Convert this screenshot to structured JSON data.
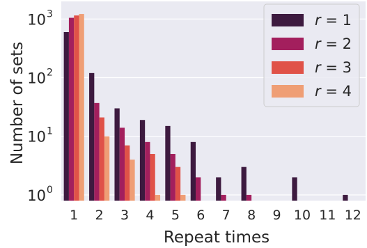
{
  "chart_data": {
    "type": "bar",
    "scale_y": "log",
    "xlabel": "Repeat times",
    "ylabel": "Number of sets",
    "categories": [
      "1",
      "2",
      "3",
      "4",
      "5",
      "6",
      "7",
      "8",
      "9",
      "10",
      "11",
      "12"
    ],
    "ylim": [
      0.8,
      2000
    ],
    "y_ticks": [
      {
        "value": 1,
        "base": "10",
        "exp": "0"
      },
      {
        "value": 10,
        "base": "10",
        "exp": "1"
      },
      {
        "value": 100,
        "base": "10",
        "exp": "2"
      },
      {
        "value": 1000,
        "base": "10",
        "exp": "3"
      }
    ],
    "grid": true,
    "legend_position": "top-right",
    "series": [
      {
        "name": "r = 1",
        "symbol": "r",
        "value": "1",
        "color": "#3d1a3f",
        "values": [
          600,
          120,
          30,
          19,
          15,
          8,
          2,
          3,
          null,
          2,
          null,
          1
        ]
      },
      {
        "name": "r = 2",
        "symbol": "r",
        "value": "2",
        "color": "#a31f5d",
        "values": [
          1050,
          37,
          14,
          8,
          5,
          2,
          1,
          1,
          null,
          null,
          null,
          null
        ]
      },
      {
        "name": "r = 3",
        "symbol": "r",
        "value": "3",
        "color": "#e05248",
        "values": [
          1150,
          21,
          7,
          5,
          3,
          null,
          null,
          null,
          null,
          null,
          null,
          null
        ]
      },
      {
        "name": "r = 4",
        "symbol": "r",
        "value": "4",
        "color": "#ef9e75",
        "values": [
          1220,
          10,
          4,
          1,
          1,
          null,
          null,
          null,
          null,
          null,
          null,
          null
        ]
      }
    ],
    "style": {
      "plot_background": "#eaeaf2",
      "grid_color": "#ffffff",
      "text_color": "#262626"
    }
  }
}
